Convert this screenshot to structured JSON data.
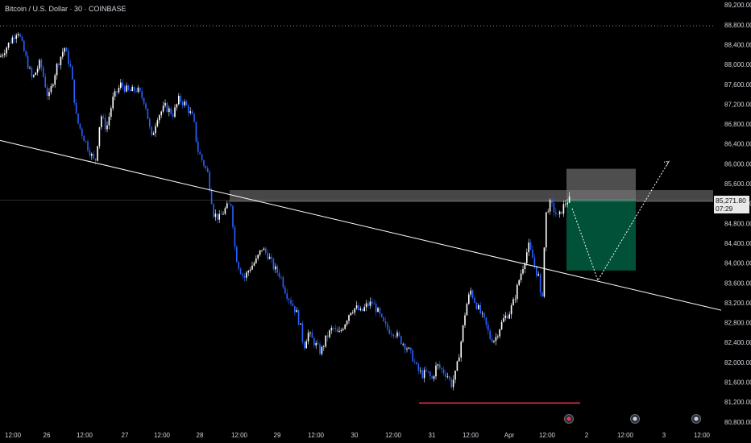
{
  "header": {
    "title": "Bitcoin / U.S. Dollar · 30 · COINBASE"
  },
  "price_tag": {
    "price": "85,271.80",
    "countdown": "07:29"
  },
  "colors": {
    "background": "#000000",
    "candle_up": "#ffffff",
    "candle_down": "#2962ff",
    "trendline": "#ffffff",
    "resistance_zone": "#9e9e9e",
    "target_zone": "#00734f",
    "stop_zone": "#787878",
    "support_line": "#f23645",
    "target_dotted_line": "#4caf50",
    "axis_text": "#d1d4dc"
  },
  "chart_data": {
    "type": "candlestick",
    "title": "Bitcoin / U.S. Dollar · 30 · COINBASE",
    "y_ticks": [
      "89,200.00",
      "88,800.00",
      "88,400.00",
      "88,000.00",
      "87,600.00",
      "87,200.00",
      "86,800.00",
      "86,400.00",
      "86,000.00",
      "85,600.00",
      "85,200.00",
      "84,800.00",
      "84,400.00",
      "84,000.00",
      "83,600.00",
      "83,200.00",
      "82,800.00",
      "82,400.00",
      "82,000.00",
      "81,600.00",
      "81,200.00",
      "80,800.00"
    ],
    "x_ticks": [
      "12:00",
      "26",
      "12:00",
      "27",
      "12:00",
      "28",
      "12:00",
      "29",
      "12:00",
      "30",
      "12:00",
      "31",
      "12:00",
      "Apr",
      "12:00",
      "2",
      "12:00",
      "3",
      "12:00"
    ],
    "ylim": [
      80700,
      89300
    ],
    "last_price": 85271.8,
    "close_path": [
      [
        0,
        88150
      ],
      [
        10,
        88400
      ],
      [
        22,
        88700
      ],
      [
        30,
        88250
      ],
      [
        40,
        87700
      ],
      [
        50,
        88050
      ],
      [
        60,
        87300
      ],
      [
        70,
        87950
      ],
      [
        80,
        88350
      ],
      [
        88,
        87900
      ],
      [
        95,
        86900
      ],
      [
        102,
        86600
      ],
      [
        110,
        86300
      ],
      [
        118,
        86000
      ],
      [
        125,
        87000
      ],
      [
        132,
        86700
      ],
      [
        140,
        87300
      ],
      [
        150,
        87600
      ],
      [
        160,
        87450
      ],
      [
        170,
        87500
      ],
      [
        180,
        87250
      ],
      [
        188,
        86500
      ],
      [
        195,
        86950
      ],
      [
        205,
        87150
      ],
      [
        215,
        87000
      ],
      [
        222,
        87300
      ],
      [
        230,
        87200
      ],
      [
        240,
        86900
      ],
      [
        245,
        86300
      ],
      [
        250,
        86100
      ],
      [
        258,
        85800
      ],
      [
        265,
        85000
      ],
      [
        272,
        84900
      ],
      [
        280,
        85100
      ],
      [
        287,
        85200
      ],
      [
        292,
        84200
      ],
      [
        297,
        83900
      ],
      [
        303,
        83700
      ],
      [
        310,
        83900
      ],
      [
        318,
        84050
      ],
      [
        325,
        84300
      ],
      [
        333,
        84150
      ],
      [
        340,
        83900
      ],
      [
        348,
        83750
      ],
      [
        355,
        83400
      ],
      [
        362,
        83200
      ],
      [
        368,
        83000
      ],
      [
        373,
        82700
      ],
      [
        377,
        82300
      ],
      [
        382,
        82600
      ],
      [
        390,
        82400
      ],
      [
        398,
        82200
      ],
      [
        405,
        82500
      ],
      [
        413,
        82700
      ],
      [
        420,
        82550
      ],
      [
        428,
        82800
      ],
      [
        435,
        83050
      ],
      [
        442,
        83100
      ],
      [
        448,
        83000
      ],
      [
        455,
        83150
      ],
      [
        462,
        83200
      ],
      [
        468,
        83050
      ],
      [
        475,
        82800
      ],
      [
        482,
        82650
      ],
      [
        490,
        82600
      ],
      [
        497,
        82450
      ],
      [
        505,
        82300
      ],
      [
        512,
        82100
      ],
      [
        518,
        81850
      ],
      [
        524,
        81750
      ],
      [
        530,
        81800
      ],
      [
        536,
        81650
      ],
      [
        542,
        81950
      ],
      [
        548,
        81850
      ],
      [
        555,
        81750
      ],
      [
        560,
        81550
      ],
      [
        566,
        81800
      ],
      [
        572,
        82400
      ],
      [
        578,
        83100
      ],
      [
        584,
        83450
      ],
      [
        590,
        83200
      ],
      [
        596,
        83000
      ],
      [
        602,
        82800
      ],
      [
        608,
        82500
      ],
      [
        614,
        82450
      ],
      [
        620,
        82700
      ],
      [
        626,
        82900
      ],
      [
        632,
        83000
      ],
      [
        638,
        83250
      ],
      [
        644,
        83650
      ],
      [
        650,
        84000
      ],
      [
        656,
        84350
      ],
      [
        661,
        84100
      ],
      [
        665,
        83850
      ],
      [
        669,
        83700
      ],
      [
        672,
        83000
      ],
      [
        675,
        84200
      ],
      [
        678,
        85050
      ],
      [
        683,
        85200
      ],
      [
        688,
        85050
      ],
      [
        693,
        84900
      ],
      [
        698,
        85100
      ],
      [
        703,
        85250
      ],
      [
        707,
        85272
      ]
    ],
    "annotations": {
      "descending_trendline": [
        [
          0,
          86470
        ],
        [
          895,
          83050
        ]
      ],
      "resistance_zone_price": [
        85230,
        85470
      ],
      "long_position": {
        "entry": 85272,
        "target_top": 85900,
        "stop_bottom": 83850
      },
      "projection_path": [
        [
          710,
          85100
        ],
        [
          742,
          83650
        ],
        [
          830,
          86050
        ]
      ],
      "support_line": {
        "price": 81180
      },
      "target_level": {
        "price": 88780
      }
    },
    "grid": false
  }
}
